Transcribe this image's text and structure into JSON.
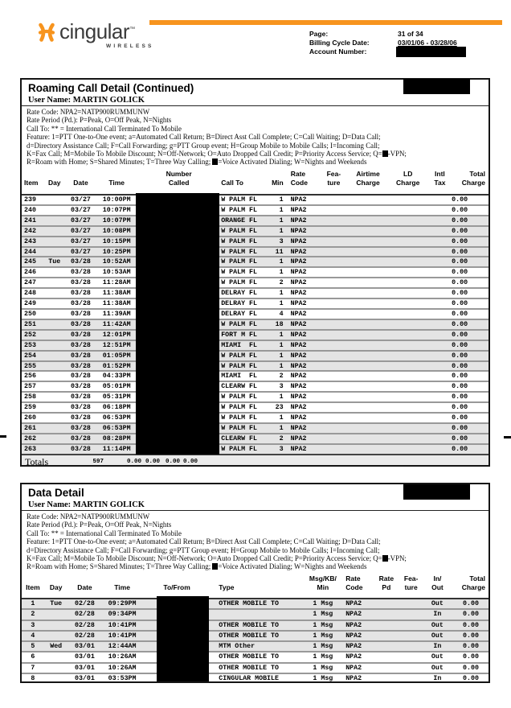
{
  "page_header": {
    "brand": "cingular",
    "brand_tm": "™",
    "brand_sub": "WIRELESS",
    "accent_color": "#F7941E",
    "page_label": "Page:",
    "page_value": "31 of 34",
    "cycle_label": "Billing Cycle Date:",
    "cycle_value": "03/01/06 - 03/28/06",
    "account_label": "Account Number:"
  },
  "legend_lines": [
    [
      {
        "text": "Rate Code: NPA2=NATP900RUMMUNW"
      }
    ],
    [
      {
        "text": "Rate Period (Pd.): P=Peak, O=Off Peak, N=Nights"
      }
    ],
    [
      {
        "text": "Call To: ** = International Call Terminated To Mobile"
      }
    ],
    [
      {
        "text": "Feature:  1=PTT One-to-One event; a=Automated Call Return; B=Direct Asst Call Complete; C=Call Waiting; D=Data Call;"
      }
    ],
    [
      {
        "text": "d=Directory Assistance Call; F=Call Forwarding; g=PTT Group event; H=Group Mobile to Mobile Calls; I=Incoming Call;"
      }
    ],
    [
      {
        "text": "K=Fax Call; M=Mobile To Mobile Discount; N=Off-Network; O=Auto Dropped Call Credit; P=Priority Access Service; Q="
      },
      {
        "redacted_mark": true
      },
      {
        "text": "-VPN;"
      }
    ],
    [
      {
        "text": "R=Roam with Home; S=Shared Minutes; T=Three Way Calling; "
      },
      {
        "redacted_mark": true
      },
      {
        "text": "=Voice Activated Dialing; W=Nights and Weekends"
      }
    ]
  ],
  "roaming": {
    "title": "Roaming Call Detail (Continued)",
    "user_name": "User Name: MARTIN GOLICK",
    "columns": [
      {
        "l1": "",
        "l2": "Item"
      },
      {
        "l1": "",
        "l2": "Day"
      },
      {
        "l1": "",
        "l2": "Date"
      },
      {
        "l1": "",
        "l2": "Time"
      },
      {
        "l1": "Number",
        "l2": "Called"
      },
      {
        "l1": "",
        "l2": "Call To"
      },
      {
        "l1": "",
        "l2": "Min"
      },
      {
        "l1": "Rate",
        "l2": "Code"
      },
      {
        "l1": "Fea-",
        "l2": "ture"
      },
      {
        "l1": "Airtime",
        "l2": "Charge"
      },
      {
        "l1": "LD",
        "l2": "Charge"
      },
      {
        "l1": "Intl",
        "l2": "Tax"
      },
      {
        "l1": "Total",
        "l2": "Charge"
      }
    ],
    "rows": [
      {
        "item": "239",
        "day": "",
        "date": "03/27",
        "time": "10:00PM",
        "call_to": "W PALM FL",
        "min": "1",
        "rate_code": "NPA2",
        "total": "0.00",
        "shaded": false
      },
      {
        "item": "240",
        "day": "",
        "date": "03/27",
        "time": "10:07PM",
        "call_to": "W PALM FL",
        "min": "1",
        "rate_code": "NPA2",
        "total": "0.00",
        "shaded": false
      },
      {
        "item": "241",
        "day": "",
        "date": "03/27",
        "time": "10:07PM",
        "call_to": "ORANGE FL",
        "min": "1",
        "rate_code": "NPA2",
        "total": "0.00",
        "shaded": true
      },
      {
        "item": "242",
        "day": "",
        "date": "03/27",
        "time": "10:08PM",
        "call_to": "W PALM FL",
        "min": "1",
        "rate_code": "NPA2",
        "total": "0.00",
        "shaded": true
      },
      {
        "item": "243",
        "day": "",
        "date": "03/27",
        "time": "10:15PM",
        "call_to": "W PALM FL",
        "min": "3",
        "rate_code": "NPA2",
        "total": "0.00",
        "shaded": true
      },
      {
        "item": "244",
        "day": "",
        "date": "03/27",
        "time": "10:25PM",
        "call_to": "W PALM FL",
        "min": "11",
        "rate_code": "NPA2",
        "total": "0.00",
        "shaded": true
      },
      {
        "item": "245",
        "day": "Tue",
        "date": "03/28",
        "time": "10:52AM",
        "call_to": "W PALM FL",
        "min": "1",
        "rate_code": "NPA2",
        "total": "0.00",
        "shaded": true
      },
      {
        "item": "246",
        "day": "",
        "date": "03/28",
        "time": "10:53AM",
        "call_to": "W PALM FL",
        "min": "1",
        "rate_code": "NPA2",
        "total": "0.00",
        "shaded": false
      },
      {
        "item": "247",
        "day": "",
        "date": "03/28",
        "time": "11:28AM",
        "call_to": "W PALM FL",
        "min": "2",
        "rate_code": "NPA2",
        "total": "0.00",
        "shaded": false
      },
      {
        "item": "248",
        "day": "",
        "date": "03/28",
        "time": "11:38AM",
        "call_to": "DELRAY FL",
        "min": "1",
        "rate_code": "NPA2",
        "total": "0.00",
        "shaded": false
      },
      {
        "item": "249",
        "day": "",
        "date": "03/28",
        "time": "11:38AM",
        "call_to": "DELRAY FL",
        "min": "1",
        "rate_code": "NPA2",
        "total": "0.00",
        "shaded": false
      },
      {
        "item": "250",
        "day": "",
        "date": "03/28",
        "time": "11:39AM",
        "call_to": "DELRAY FL",
        "min": "4",
        "rate_code": "NPA2",
        "total": "0.00",
        "shaded": false
      },
      {
        "item": "251",
        "day": "",
        "date": "03/28",
        "time": "11:42AM",
        "call_to": "W PALM FL",
        "min": "18",
        "rate_code": "NPA2",
        "total": "0.00",
        "shaded": true
      },
      {
        "item": "252",
        "day": "",
        "date": "03/28",
        "time": "12:01PM",
        "call_to": "FORT M FL",
        "min": "1",
        "rate_code": "NPA2",
        "total": "0.00",
        "shaded": true
      },
      {
        "item": "253",
        "day": "",
        "date": "03/28",
        "time": "12:51PM",
        "call_to": "MIAMI  FL",
        "min": "1",
        "rate_code": "NPA2",
        "total": "0.00",
        "shaded": true
      },
      {
        "item": "254",
        "day": "",
        "date": "03/28",
        "time": "01:05PM",
        "call_to": "W PALM FL",
        "min": "1",
        "rate_code": "NPA2",
        "total": "0.00",
        "shaded": true
      },
      {
        "item": "255",
        "day": "",
        "date": "03/28",
        "time": "01:52PM",
        "call_to": "W PALM FL",
        "min": "1",
        "rate_code": "NPA2",
        "total": "0.00",
        "shaded": true
      },
      {
        "item": "256",
        "day": "",
        "date": "03/28",
        "time": "04:33PM",
        "call_to": "MIAMI  FL",
        "min": "2",
        "rate_code": "NPA2",
        "total": "0.00",
        "shaded": false
      },
      {
        "item": "257",
        "day": "",
        "date": "03/28",
        "time": "05:01PM",
        "call_to": "CLEARW FL",
        "min": "3",
        "rate_code": "NPA2",
        "total": "0.00",
        "shaded": false
      },
      {
        "item": "258",
        "day": "",
        "date": "03/28",
        "time": "05:31PM",
        "call_to": "W PALM FL",
        "min": "1",
        "rate_code": "NPA2",
        "total": "0.00",
        "shaded": false
      },
      {
        "item": "259",
        "day": "",
        "date": "03/28",
        "time": "06:18PM",
        "call_to": "W PALM FL",
        "min": "23",
        "rate_code": "NPA2",
        "total": "0.00",
        "shaded": false
      },
      {
        "item": "260",
        "day": "",
        "date": "03/28",
        "time": "06:53PM",
        "call_to": "W PALM FL",
        "min": "1",
        "rate_code": "NPA2",
        "total": "0.00",
        "shaded": false
      },
      {
        "item": "261",
        "day": "",
        "date": "03/28",
        "time": "06:53PM",
        "call_to": "W PALM FL",
        "min": "1",
        "rate_code": "NPA2",
        "total": "0.00",
        "shaded": true
      },
      {
        "item": "262",
        "day": "",
        "date": "03/28",
        "time": "08:28PM",
        "call_to": "CLEARW FL",
        "min": "2",
        "rate_code": "NPA2",
        "total": "0.00",
        "shaded": true
      },
      {
        "item": "263",
        "day": "",
        "date": "03/28",
        "time": "11:14PM",
        "call_to": "W PALM FL",
        "min": "3",
        "rate_code": "NPA2",
        "total": "0.00",
        "shaded": true
      }
    ],
    "totals": {
      "label": "Totals",
      "min_total": "597",
      "zeros": [
        "0.00",
        "0.00",
        "0.00",
        "0.00"
      ]
    }
  },
  "data_detail": {
    "title": "Data Detail",
    "user_name": "User Name: MARTIN GOLICK",
    "columns": [
      {
        "l1": "",
        "l2": "Item"
      },
      {
        "l1": "",
        "l2": "Day"
      },
      {
        "l1": "",
        "l2": "Date"
      },
      {
        "l1": "",
        "l2": "Time"
      },
      {
        "l1": "",
        "l2": "To/From"
      },
      {
        "l1": "",
        "l2": "Type"
      },
      {
        "l1": "Msg/KB/",
        "l2": "Min"
      },
      {
        "l1": "Rate",
        "l2": "Code"
      },
      {
        "l1": "Rate",
        "l2": "Pd"
      },
      {
        "l1": "Fea-",
        "l2": "ture"
      },
      {
        "l1": "In/",
        "l2": "Out"
      },
      {
        "l1": "Total",
        "l2": "Charge"
      }
    ],
    "rows": [
      {
        "item": "1",
        "day": "Tue",
        "date": "02/28",
        "time": "09:29PM",
        "type": "OTHER MOBILE TO",
        "qty": "1 Msg",
        "rate_code": "NPA2",
        "in_out": "Out",
        "total": "0.00",
        "shaded": true
      },
      {
        "item": "2",
        "day": "",
        "date": "02/28",
        "time": "09:34PM",
        "type": "",
        "qty": "1 Msg",
        "rate_code": "NPA2",
        "in_out": "In",
        "total": "0.00",
        "shaded": true
      },
      {
        "item": "3",
        "day": "",
        "date": "02/28",
        "time": "10:41PM",
        "type": "OTHER MOBILE TO",
        "qty": "1 Msg",
        "rate_code": "NPA2",
        "in_out": "Out",
        "total": "0.00",
        "shaded": true
      },
      {
        "item": "4",
        "day": "",
        "date": "02/28",
        "time": "10:41PM",
        "type": "OTHER MOBILE TO",
        "qty": "1 Msg",
        "rate_code": "NPA2",
        "in_out": "Out",
        "total": "0.00",
        "shaded": true
      },
      {
        "item": "5",
        "day": "Wed",
        "date": "03/01",
        "time": "12:44AM",
        "type": "MTM Other",
        "qty": "1 Msg",
        "rate_code": "NPA2",
        "in_out": "In",
        "total": "0.00",
        "shaded": true
      },
      {
        "item": "6",
        "day": "",
        "date": "03/01",
        "time": "10:26AM",
        "type": "OTHER MOBILE TO",
        "qty": "1 Msg",
        "rate_code": "NPA2",
        "in_out": "Out",
        "total": "0.00",
        "shaded": false
      },
      {
        "item": "7",
        "day": "",
        "date": "03/01",
        "time": "10:26AM",
        "type": "OTHER MOBILE TO",
        "qty": "1 Msg",
        "rate_code": "NPA2",
        "in_out": "Out",
        "total": "0.00",
        "shaded": false
      },
      {
        "item": "8",
        "day": "",
        "date": "03/01",
        "time": "03:53PM",
        "type": "CINGULAR MOBILE",
        "qty": "1 Msg",
        "rate_code": "NPA2",
        "in_out": "In",
        "total": "0.00",
        "shaded": false
      }
    ]
  }
}
